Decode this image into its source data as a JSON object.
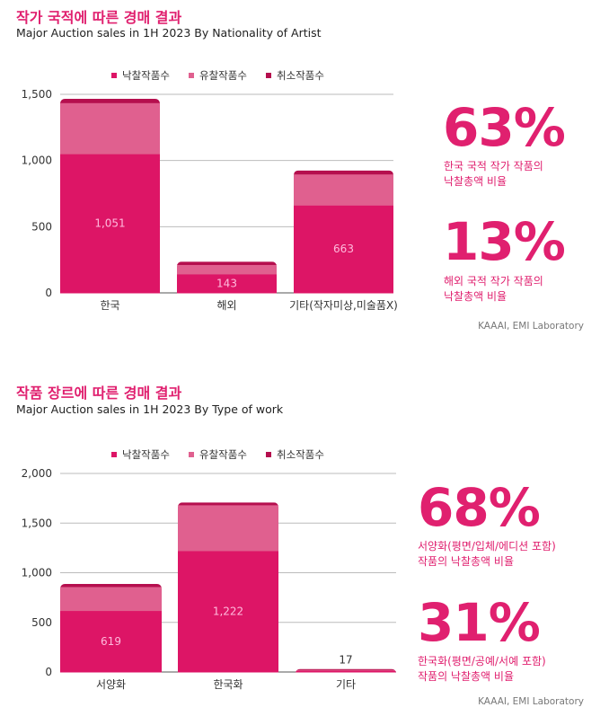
{
  "chart_data": [
    {
      "type": "bar",
      "stacked": true,
      "title": "작가 국적에 따른 경매 결과",
      "subtitle": "Major Auction sales in 1H 2023 By Nationality of Artist",
      "categories": [
        "한국",
        "해외",
        "기타(작자미상,미술품X)"
      ],
      "series": [
        {
          "name": "낙찰작품수",
          "values": [
            1051,
            143,
            663
          ],
          "labels": [
            "1,051",
            "143",
            "663"
          ]
        },
        {
          "name": "유찰작품수",
          "values": [
            386,
            71,
            235
          ]
        },
        {
          "name": "취소작품수",
          "values": [
            29,
            22,
            27
          ]
        }
      ],
      "yticks": [
        "0",
        "500",
        "1,000",
        "1,500"
      ],
      "ylim": [
        0,
        1500
      ],
      "legend": "top",
      "grid": true
    },
    {
      "type": "bar",
      "stacked": true,
      "title": "작품 장르에 따른 경매 결과",
      "subtitle": "Major Auction sales in 1H 2023 By Type of work",
      "categories": [
        "서양화",
        "한국화",
        "기타"
      ],
      "series": [
        {
          "name": "낙찰작품수",
          "values": [
            619,
            1222,
            17
          ],
          "labels": [
            "619",
            "1,222",
            "17"
          ]
        },
        {
          "name": "유찰작품수",
          "values": [
            241,
            462,
            8
          ]
        },
        {
          "name": "취소작품수",
          "values": [
            27,
            24,
            5
          ]
        }
      ],
      "yticks": [
        "0",
        "500",
        "1,000",
        "1,500",
        "2,000"
      ],
      "ylim": [
        0,
        2000
      ],
      "legend": "top",
      "grid": true
    }
  ],
  "colors": {
    "sold": "#dd1566",
    "unsold": "#e0608f",
    "cancelled": "#b50f4e",
    "accent": "#e0206f"
  },
  "stats1": [
    {
      "value": "63%",
      "desc1": "한국 국적 작가 작품의",
      "desc2": "낙찰총액 비율"
    },
    {
      "value": "13%",
      "desc1": "해외 국적 작가 작품의",
      "desc2": "낙찰총액 비율"
    }
  ],
  "stats2": [
    {
      "value": "68%",
      "desc1": "서양화(평면/입체/에디션 포함)",
      "desc2": "작품의 낙찰총액 비율"
    },
    {
      "value": "31%",
      "desc1": "한국화(평면/공예/서예 포함)",
      "desc2": "작품의 낙찰총액 비율"
    }
  ],
  "source": "KAAAI, EMI Laboratory"
}
